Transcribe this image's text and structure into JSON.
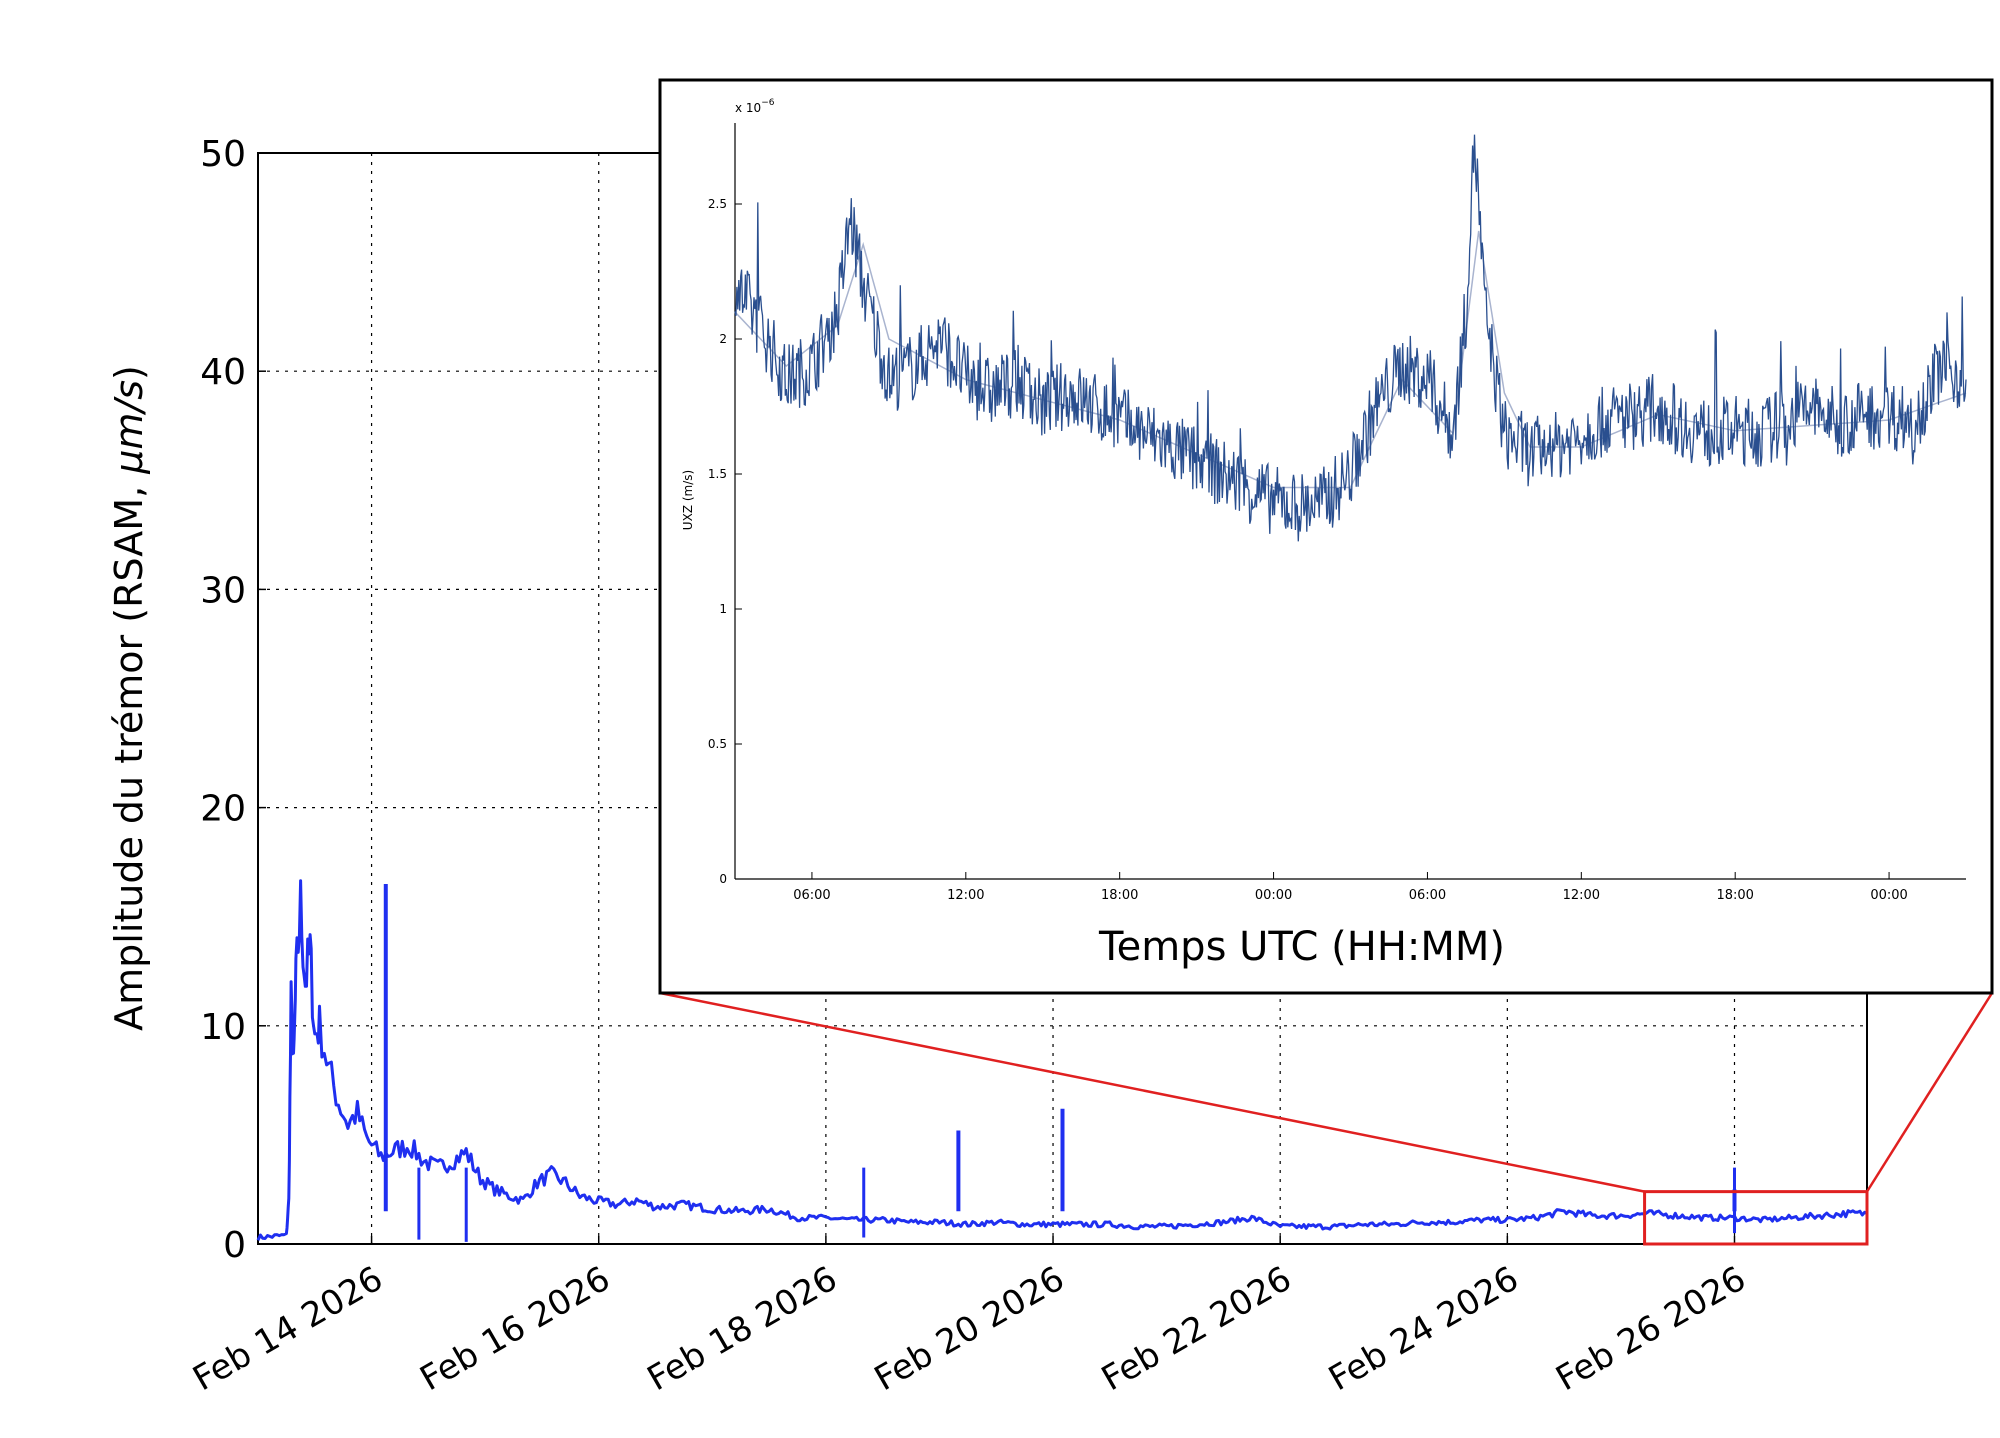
{
  "chart_data": [
    {
      "type": "line",
      "title": "",
      "xlabel": "",
      "ylabel": "Amplitude du trémor (RSAM, ",
      "ylabel_unit": "μm/s",
      "ylabel_close": ")",
      "x_range": [
        "2026-02-13",
        "2026-02-27T04:00"
      ],
      "ylim": [
        0,
        50
      ],
      "yticks": [
        0,
        10,
        20,
        30,
        40,
        50
      ],
      "xticks": [
        "2026-02-14",
        "2026-02-16",
        "2026-02-18",
        "2026-02-20",
        "2026-02-22",
        "2026-02-24",
        "2026-02-26"
      ],
      "xtick_labels": [
        "Feb 14 2026",
        "Feb 16 2026",
        "Feb 18 2026",
        "Feb 20 2026",
        "Feb 22 2026",
        "Feb 24 2026",
        "Feb 26 2026"
      ],
      "grid": true,
      "line_color": "#1f2ff0",
      "series": [
        {
          "x": [
            "2026-02-13T00:00",
            "2026-02-13T06:00",
            "2026-02-13T06:30",
            "2026-02-13T07:00",
            "2026-02-13T07:30",
            "2026-02-13T08:00",
            "2026-02-13T09:00",
            "2026-02-13T10:00",
            "2026-02-13T11:00",
            "2026-02-13T12:00",
            "2026-02-13T13:00",
            "2026-02-13T15:00",
            "2026-02-13T17:00",
            "2026-02-13T19:00",
            "2026-02-13T21:00",
            "2026-02-13T23:00",
            "2026-02-14T02:00",
            "2026-02-14T05:00",
            "2026-02-14T08:00",
            "2026-02-14T11:00",
            "2026-02-14T14:00",
            "2026-02-14T17:00",
            "2026-02-14T20:00",
            "2026-02-14T23:00",
            "2026-02-15T02:00",
            "2026-02-15T05:00",
            "2026-02-15T08:00",
            "2026-02-15T11:00",
            "2026-02-15T14:00",
            "2026-02-15T17:00",
            "2026-02-15T20:00",
            "2026-02-15T23:00",
            "2026-02-16T04:00",
            "2026-02-16T08:00",
            "2026-02-16T12:00",
            "2026-02-16T18:00",
            "2026-02-17T00:00",
            "2026-02-17T06:00",
            "2026-02-17T12:00",
            "2026-02-17T18:00",
            "2026-02-18T00:00",
            "2026-02-18T06:00",
            "2026-02-18T12:00",
            "2026-02-18T18:00",
            "2026-02-19T00:00",
            "2026-02-19T06:00",
            "2026-02-19T12:00",
            "2026-02-19T18:00",
            "2026-02-20T00:00",
            "2026-02-20T06:00",
            "2026-02-20T12:00",
            "2026-02-20T18:00",
            "2026-02-21T00:00",
            "2026-02-21T06:00",
            "2026-02-21T12:00",
            "2026-02-21T18:00",
            "2026-02-22T00:00",
            "2026-02-22T06:00",
            "2026-02-22T12:00",
            "2026-02-22T18:00",
            "2026-02-23T00:00",
            "2026-02-23T06:00",
            "2026-02-23T12:00",
            "2026-02-23T18:00",
            "2026-02-24T00:00",
            "2026-02-24T06:00",
            "2026-02-24T12:00",
            "2026-02-24T18:00",
            "2026-02-25T00:00",
            "2026-02-25T06:00",
            "2026-02-25T12:00",
            "2026-02-25T18:00",
            "2026-02-26T00:00",
            "2026-02-26T06:00",
            "2026-02-26T12:00",
            "2026-02-26T18:00",
            "2026-02-27T00:00",
            "2026-02-27T04:00"
          ],
          "y": [
            0.3,
            0.4,
            2.0,
            11.0,
            8.0,
            12.0,
            15.5,
            12.0,
            13.5,
            9.5,
            10.0,
            8.0,
            6.5,
            5.5,
            6.0,
            4.8,
            4.0,
            4.3,
            4.5,
            3.8,
            3.5,
            3.8,
            4.2,
            3.0,
            2.5,
            2.2,
            2.0,
            2.8,
            3.2,
            2.8,
            2.2,
            2.0,
            1.8,
            2.0,
            1.7,
            1.8,
            1.6,
            1.5,
            1.6,
            1.2,
            1.2,
            1.1,
            1.1,
            1.0,
            1.0,
            0.9,
            1.0,
            0.9,
            0.9,
            0.9,
            0.9,
            0.8,
            0.8,
            0.9,
            1.0,
            1.2,
            0.8,
            0.8,
            0.8,
            0.9,
            0.9,
            1.0,
            1.0,
            1.1,
            1.1,
            1.2,
            1.5,
            1.3,
            1.3,
            1.4,
            1.3,
            1.2,
            1.2,
            1.1,
            1.2,
            1.3,
            1.4,
            1.4
          ]
        }
      ],
      "spikes": [
        {
          "x": "2026-02-14T03:00",
          "y": 16.5
        },
        {
          "x": "2026-02-19T04:00",
          "y": 5.2
        },
        {
          "x": "2026-02-20T02:00",
          "y": 6.2
        },
        {
          "x": "2026-02-26T00:00",
          "y": 2.5
        }
      ],
      "dropouts": [
        {
          "x": "2026-02-14T10:00",
          "y": 0.2
        },
        {
          "x": "2026-02-14T20:00",
          "y": 0.1
        },
        {
          "x": "2026-02-18T08:00",
          "y": 0.3
        },
        {
          "x": "2026-02-26T00:00",
          "y": 0.5
        }
      ],
      "zoom_box": {
        "x": [
          "2026-02-25T05:00",
          "2026-02-27T04:00"
        ],
        "y": [
          0,
          2.4
        ]
      },
      "zoom_color": "#e02020"
    },
    {
      "type": "line",
      "title": "",
      "xlabel": "Temps  UTC (HH:MM)",
      "ylabel": "UXZ (m/s)",
      "y_scale_label": "x 10",
      "y_scale_exp": "−6",
      "x_range": [
        "2026-02-25T03:00",
        "2026-02-27T03:00"
      ],
      "ylim": [
        0,
        2.8
      ],
      "yticks": [
        0,
        0.5,
        1,
        1.5,
        2,
        2.5
      ],
      "ytick_labels": [
        "0",
        "0.5",
        "1",
        "1.5",
        "2",
        "2.5"
      ],
      "xticks": [
        "2026-02-25T06:00",
        "2026-02-25T12:00",
        "2026-02-25T18:00",
        "2026-02-26T00:00",
        "2026-02-26T06:00",
        "2026-02-26T12:00",
        "2026-02-26T18:00",
        "2026-02-27T00:00"
      ],
      "xtick_labels": [
        "06:00",
        "12:00",
        "18:00",
        "00:00",
        "06:00",
        "12:00",
        "18:00",
        "00:00"
      ],
      "grid": false,
      "series": [
        {
          "name": "",
          "color": "#2a4f8f",
          "x": [
            "2026-02-25T03:00",
            "2026-02-25T04:00",
            "2026-02-25T05:00",
            "2026-02-25T06:00",
            "2026-02-25T07:00",
            "2026-02-25T07:30",
            "2026-02-25T08:00",
            "2026-02-25T09:00",
            "2026-02-25T10:00",
            "2026-02-25T11:00",
            "2026-02-25T12:00",
            "2026-02-25T13:00",
            "2026-02-25T14:00",
            "2026-02-25T15:00",
            "2026-02-25T16:00",
            "2026-02-25T17:00",
            "2026-02-25T18:00",
            "2026-02-25T19:00",
            "2026-02-25T20:00",
            "2026-02-25T21:00",
            "2026-02-25T22:00",
            "2026-02-25T23:00",
            "2026-02-26T00:00",
            "2026-02-26T01:00",
            "2026-02-26T02:00",
            "2026-02-26T03:00",
            "2026-02-26T04:00",
            "2026-02-26T05:00",
            "2026-02-26T06:00",
            "2026-02-26T07:00",
            "2026-02-26T07:30",
            "2026-02-26T07:50",
            "2026-02-26T08:15",
            "2026-02-26T09:00",
            "2026-02-26T10:00",
            "2026-02-26T11:00",
            "2026-02-26T12:00",
            "2026-02-26T13:00",
            "2026-02-26T14:00",
            "2026-02-26T15:00",
            "2026-02-26T16:00",
            "2026-02-26T17:00",
            "2026-02-26T18:00",
            "2026-02-26T19:00",
            "2026-02-26T20:00",
            "2026-02-26T21:00",
            "2026-02-26T22:00",
            "2026-02-26T23:00",
            "2026-02-27T00:00",
            "2026-02-27T01:00",
            "2026-02-27T02:00",
            "2026-02-27T03:00"
          ],
          "y": [
            2.2,
            2.05,
            1.85,
            1.9,
            2.1,
            2.45,
            2.2,
            1.85,
            1.9,
            2.0,
            1.85,
            1.8,
            1.85,
            1.75,
            1.8,
            1.75,
            1.7,
            1.65,
            1.6,
            1.55,
            1.5,
            1.45,
            1.4,
            1.38,
            1.4,
            1.5,
            1.75,
            1.9,
            1.85,
            1.65,
            2.1,
            2.75,
            2.1,
            1.65,
            1.58,
            1.6,
            1.65,
            1.7,
            1.72,
            1.75,
            1.68,
            1.65,
            1.66,
            1.65,
            1.7,
            1.75,
            1.68,
            1.72,
            1.72,
            1.7,
            1.9,
            1.85
          ],
          "noise": 0.12
        },
        {
          "name": "",
          "color": "#a9b4cf",
          "x": [
            "2026-02-25T03:00",
            "2026-02-25T05:00",
            "2026-02-25T07:00",
            "2026-02-25T08:00",
            "2026-02-25T09:00",
            "2026-02-25T12:00",
            "2026-02-25T18:00",
            "2026-02-26T00:00",
            "2026-02-26T03:00",
            "2026-02-26T05:00",
            "2026-02-26T07:00",
            "2026-02-26T08:00",
            "2026-02-26T09:00",
            "2026-02-26T10:00",
            "2026-02-26T12:00",
            "2026-02-26T15:00",
            "2026-02-26T18:00",
            "2026-02-27T00:00",
            "2026-02-27T03:00"
          ],
          "y": [
            2.1,
            1.9,
            2.05,
            2.35,
            2.0,
            1.85,
            1.7,
            1.45,
            1.45,
            1.85,
            1.65,
            2.4,
            1.8,
            1.6,
            1.6,
            1.72,
            1.66,
            1.7,
            1.8
          ],
          "noise": 0
        }
      ]
    }
  ]
}
